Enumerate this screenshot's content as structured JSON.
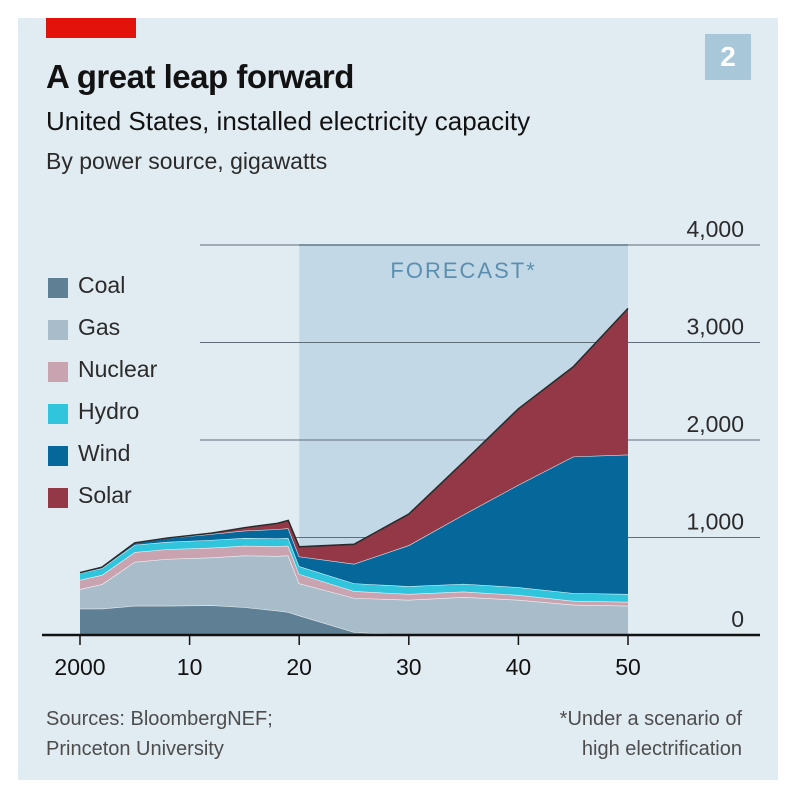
{
  "header": {
    "title": "A great leap forward",
    "subtitle": "United States, installed electricity capacity",
    "units": "By power source, gigawatts",
    "badge": "2"
  },
  "footer": {
    "source_line1": "Sources: BloombergNEF;",
    "source_line2": "Princeton University",
    "note_line1": "*Under a scenario of",
    "note_line2": "high electrification"
  },
  "colors": {
    "background": "#e1ebf2",
    "accent": "#e3120b",
    "forecast_band": "#c3d8e6",
    "gridline": "#5f6d78"
  },
  "chart_data": {
    "type": "area",
    "stacked": true,
    "x": [
      2000,
      2002,
      2005,
      2008,
      2012,
      2015,
      2018,
      2019,
      2020,
      2025,
      2030,
      2035,
      2040,
      2045,
      2050
    ],
    "x_tick_labels": [
      "2000",
      "10",
      "20",
      "30",
      "40",
      "50"
    ],
    "x_tick_values": [
      2000,
      2010,
      2020,
      2030,
      2040,
      2050
    ],
    "y_tick_labels": [
      "0",
      "1,000",
      "2,000",
      "3,000",
      "4,000"
    ],
    "y_tick_values": [
      0,
      1000,
      2000,
      3000,
      4000
    ],
    "ylim": [
      0,
      4000
    ],
    "xlim": [
      2000,
      2050
    ],
    "grid": true,
    "forecast": {
      "label": "FORECAST*",
      "start": 2020,
      "end": 2050
    },
    "series": [
      {
        "name": "Coal",
        "color": "#5e7f94",
        "values": [
          270,
          270,
          300,
          300,
          305,
          285,
          250,
          235,
          200,
          30,
          0,
          0,
          0,
          0,
          0
        ]
      },
      {
        "name": "Gas",
        "color": "#a8bcc9",
        "values": [
          200,
          250,
          450,
          480,
          490,
          530,
          560,
          580,
          330,
          350,
          360,
          390,
          360,
          310,
          300
        ]
      },
      {
        "name": "Nuclear",
        "color": "#c9a3b0",
        "values": [
          95,
          95,
          100,
          100,
          100,
          100,
          100,
          100,
          95,
          70,
          60,
          55,
          50,
          40,
          40
        ]
      },
      {
        "name": "Hydro",
        "color": "#30c5dc",
        "values": [
          70,
          70,
          75,
          75,
          80,
          80,
          80,
          80,
          80,
          80,
          80,
          80,
          80,
          80,
          80
        ]
      },
      {
        "name": "Wind",
        "color": "#06679a",
        "values": [
          5,
          10,
          20,
          40,
          60,
          75,
          95,
          100,
          100,
          200,
          420,
          710,
          1050,
          1400,
          1430
        ]
      },
      {
        "name": "Solar",
        "color": "#943848",
        "values": [
          0,
          0,
          0,
          0,
          10,
          30,
          60,
          80,
          100,
          200,
          320,
          540,
          780,
          920,
          1500
        ]
      }
    ]
  }
}
